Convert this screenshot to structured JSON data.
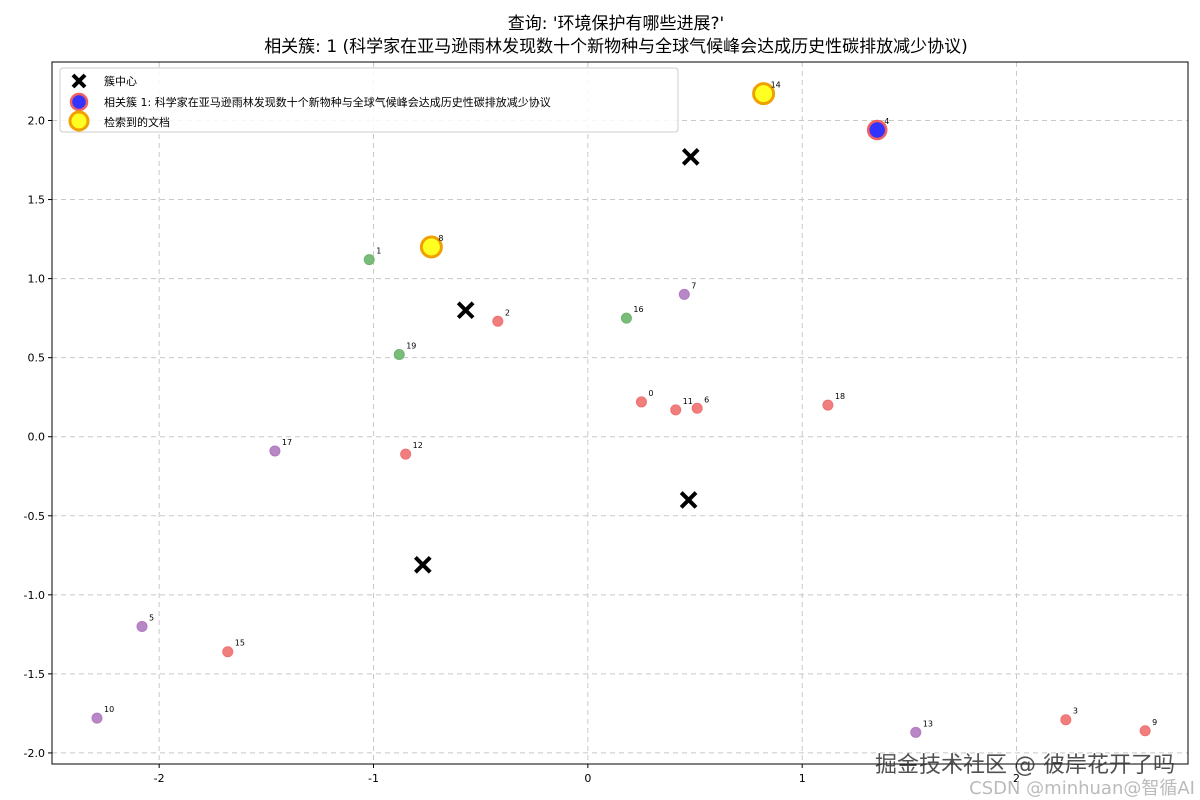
{
  "chart_data": {
    "type": "scatter",
    "title_line1": "查询: '环境保护有哪些进展?'",
    "title_line2": "相关簇: 1 (科学家在亚马逊雨林发现数十个新物种与全球气候峰会达成历史性碳排放减少协议)",
    "xlim": [
      -2.5,
      2.8
    ],
    "ylim": [
      -2.07,
      2.37
    ],
    "xticks": [
      -2,
      -1,
      0,
      1,
      2
    ],
    "yticks": [
      -2.0,
      -1.5,
      -1.0,
      -0.5,
      0.0,
      0.5,
      1.0,
      1.5,
      2.0
    ],
    "ytick_labels": [
      "-2.0",
      "-1.5",
      "-1.0",
      "-0.5",
      "0.0",
      "0.5",
      "1.0",
      "1.5",
      "2.0"
    ],
    "grid": true,
    "legend_placement": "top-left",
    "legend": [
      {
        "key": "center",
        "label": "簇中心"
      },
      {
        "key": "relevant",
        "label": "相关簇 1: 科学家在亚马逊雨林发现数十个新物种与全球气候峰会达成历史性碳排放减少协议"
      },
      {
        "key": "retrieved",
        "label": "检索到的文档"
      }
    ],
    "colors": {
      "red": "#f07070",
      "green": "#6cb56c",
      "purple": "#b07ac0",
      "center": "#000000",
      "relevant_fill": "#3333ff",
      "relevant_edge": "#f06060",
      "retrieved_fill": "#ffff22",
      "retrieved_edge": "#f0a000"
    },
    "points": [
      {
        "id": "0",
        "x": 0.25,
        "y": 0.22,
        "cluster": "red"
      },
      {
        "id": "1",
        "x": -1.02,
        "y": 1.12,
        "cluster": "green"
      },
      {
        "id": "2",
        "x": -0.42,
        "y": 0.73,
        "cluster": "red"
      },
      {
        "id": "3",
        "x": 2.23,
        "y": -1.79,
        "cluster": "red"
      },
      {
        "id": "4",
        "x": 1.35,
        "y": 1.94,
        "cluster": "red",
        "relevant": true
      },
      {
        "id": "5",
        "x": -2.08,
        "y": -1.2,
        "cluster": "purple"
      },
      {
        "id": "6",
        "x": 0.51,
        "y": 0.18,
        "cluster": "red"
      },
      {
        "id": "7",
        "x": 0.45,
        "y": 0.9,
        "cluster": "purple"
      },
      {
        "id": "8",
        "x": -0.73,
        "y": 1.2,
        "cluster": "green",
        "retrieved": true
      },
      {
        "id": "9",
        "x": 2.6,
        "y": -1.86,
        "cluster": "red"
      },
      {
        "id": "10",
        "x": -2.29,
        "y": -1.78,
        "cluster": "purple"
      },
      {
        "id": "11",
        "x": 0.41,
        "y": 0.17,
        "cluster": "red"
      },
      {
        "id": "12",
        "x": -0.85,
        "y": -0.11,
        "cluster": "red"
      },
      {
        "id": "13",
        "x": 1.53,
        "y": -1.87,
        "cluster": "purple"
      },
      {
        "id": "14",
        "x": 0.82,
        "y": 2.17,
        "cluster": "purple",
        "retrieved": true
      },
      {
        "id": "15",
        "x": -1.68,
        "y": -1.36,
        "cluster": "red"
      },
      {
        "id": "16",
        "x": 0.18,
        "y": 0.75,
        "cluster": "green"
      },
      {
        "id": "17",
        "x": -1.46,
        "y": -0.09,
        "cluster": "purple"
      },
      {
        "id": "18",
        "x": 1.12,
        "y": 0.2,
        "cluster": "red"
      },
      {
        "id": "19",
        "x": -0.88,
        "y": 0.52,
        "cluster": "green"
      }
    ],
    "centers": [
      {
        "x": 0.48,
        "y": 1.77
      },
      {
        "x": -0.57,
        "y": 0.8
      },
      {
        "x": 0.47,
        "y": -0.4
      },
      {
        "x": -0.77,
        "y": -0.81
      }
    ]
  },
  "watermark": {
    "line1": "掘金技术社区 @ 彼岸花开了吗",
    "line2": "CSDN @minhuan@智循AI"
  }
}
